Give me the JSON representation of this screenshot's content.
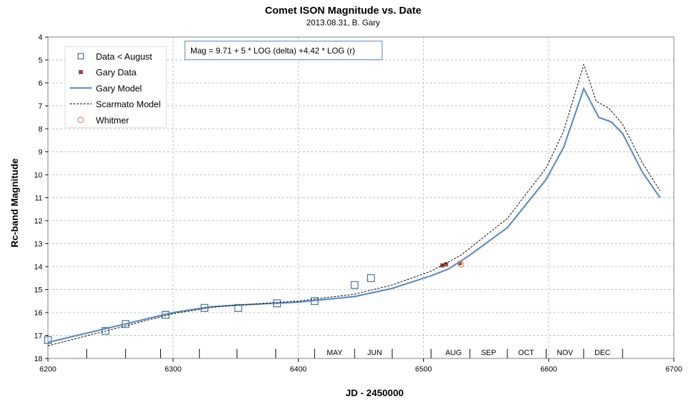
{
  "chart_data": {
    "type": "line",
    "title": "Comet ISON Magnitude  vs. Date",
    "subtitle": "2013.08.31,  B. Gary",
    "xlabel": "JD - 2450000",
    "ylabel": "Rc-band Magnitude",
    "xlim": [
      6200,
      6700
    ],
    "ylim": [
      4,
      18
    ],
    "y_inverted": true,
    "x_ticks": [
      6200,
      6300,
      6400,
      6500,
      6600,
      6700
    ],
    "y_ticks": [
      4,
      5,
      6,
      7,
      8,
      9,
      10,
      11,
      12,
      13,
      14,
      15,
      16,
      17,
      18
    ],
    "x_tick_labels": [
      "6200",
      "6300",
      "6400",
      "6500",
      "6600",
      "6700"
    ],
    "y_tick_labels": [
      "4",
      "5",
      "6",
      "7",
      "8",
      "9",
      "10",
      "11",
      "12",
      "13",
      "14",
      "15",
      "16",
      "17",
      "18"
    ],
    "grid": true,
    "annotation": "Mag = 9.71 + 5 * LOG (delta) +4.42 * LOG (r)",
    "month_labels": [
      {
        "label": "MAY",
        "x": 6429
      },
      {
        "label": "JUN",
        "x": 6461
      },
      {
        "label": "AUG",
        "x": 6524
      },
      {
        "label": "SEP",
        "x": 6552
      },
      {
        "label": "OCT",
        "x": 6582
      },
      {
        "label": "NOV",
        "x": 6613
      },
      {
        "label": "DEC",
        "x": 6643
      }
    ],
    "month_boundaries": [
      6413,
      6445,
      6475,
      6506,
      6537,
      6567,
      6598,
      6628,
      6659
    ],
    "minor_x_ticks": [
      6231,
      6262,
      6290,
      6321,
      6351,
      6382
    ],
    "legend": {
      "position": "top-left",
      "entries": [
        "Data < August",
        "Gary Data",
        "Gary Model",
        "Scarmato Model",
        "Whitmer"
      ]
    },
    "series": [
      {
        "name": "Data < August",
        "kind": "scatter",
        "marker": "open-square",
        "color": "#3d6f94",
        "points": [
          [
            6200,
            17.2
          ],
          [
            6246,
            16.8
          ],
          [
            6262,
            16.5
          ],
          [
            6294,
            16.1
          ],
          [
            6325,
            15.8
          ],
          [
            6352,
            15.8
          ],
          [
            6383,
            15.6
          ],
          [
            6413,
            15.5
          ],
          [
            6445,
            14.8
          ],
          [
            6458,
            14.5
          ]
        ]
      },
      {
        "name": "Gary Data",
        "kind": "scatter",
        "marker": "filled-square",
        "color": "#a0453f",
        "points": [
          [
            6515,
            13.95
          ],
          [
            6518,
            13.9
          ],
          [
            6529,
            13.85
          ]
        ]
      },
      {
        "name": "Gary Model",
        "kind": "line",
        "color": "#5b8cc4",
        "points": [
          [
            6200,
            17.3
          ],
          [
            6250,
            16.65
          ],
          [
            6300,
            16.0
          ],
          [
            6330,
            15.75
          ],
          [
            6350,
            15.68
          ],
          [
            6400,
            15.55
          ],
          [
            6445,
            15.3
          ],
          [
            6475,
            14.95
          ],
          [
            6506,
            14.4
          ],
          [
            6520,
            14.1
          ],
          [
            6537,
            13.5
          ],
          [
            6567,
            12.3
          ],
          [
            6598,
            10.2
          ],
          [
            6612,
            8.8
          ],
          [
            6628,
            6.25
          ],
          [
            6640,
            7.5
          ],
          [
            6650,
            7.7
          ],
          [
            6659,
            8.2
          ],
          [
            6675,
            9.9
          ],
          [
            6689,
            11.0
          ]
        ]
      },
      {
        "name": "Scarmato Model",
        "kind": "line",
        "dash": true,
        "color": "#000000",
        "points": [
          [
            6200,
            17.45
          ],
          [
            6250,
            16.75
          ],
          [
            6300,
            16.05
          ],
          [
            6330,
            15.78
          ],
          [
            6350,
            15.68
          ],
          [
            6400,
            15.5
          ],
          [
            6445,
            15.2
          ],
          [
            6475,
            14.8
          ],
          [
            6506,
            14.2
          ],
          [
            6530,
            13.5
          ],
          [
            6567,
            11.9
          ],
          [
            6598,
            9.7
          ],
          [
            6612,
            8.1
          ],
          [
            6628,
            5.2
          ],
          [
            6638,
            6.8
          ],
          [
            6648,
            7.1
          ],
          [
            6659,
            7.8
          ],
          [
            6675,
            9.5
          ],
          [
            6689,
            10.7
          ]
        ]
      },
      {
        "name": "Whitmer",
        "kind": "scatter",
        "marker": "open-circle",
        "color": "#e2884e",
        "points": [
          [
            6530,
            13.9
          ]
        ]
      }
    ]
  }
}
